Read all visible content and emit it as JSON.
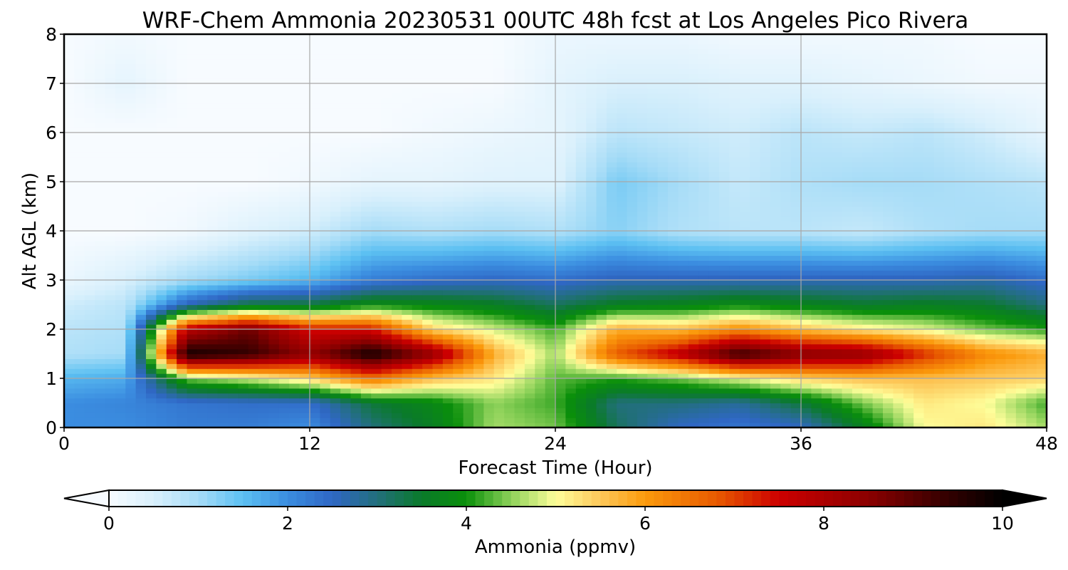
{
  "chart_data": {
    "type": "heatmap",
    "title": "WRF-Chem Ammonia  20230531 00UTC 48h fcst at Los Angeles Pico Rivera",
    "xlabel": "Forecast Time (Hour)",
    "ylabel": "Alt AGL (km)",
    "xlim": [
      0,
      48
    ],
    "ylim": [
      0,
      8
    ],
    "xticks": [
      0,
      12,
      24,
      36,
      48
    ],
    "yticks": [
      0,
      1,
      2,
      3,
      4,
      5,
      6,
      7,
      8
    ],
    "grid": true,
    "x": [
      0,
      3,
      6,
      9,
      12,
      15,
      18,
      21,
      24,
      27,
      30,
      33,
      36,
      39,
      42,
      45,
      48
    ],
    "y": [
      0,
      0.5,
      1,
      1.5,
      2,
      2.5,
      3,
      4,
      5,
      6,
      7,
      8
    ],
    "z": [
      [
        2.0,
        2.0,
        2.2,
        2.2,
        2.0,
        3.0,
        3.6,
        4.6,
        4.4,
        3.2,
        2.5,
        2.3,
        2.5,
        3.6,
        5.0,
        5.2,
        4.6
      ],
      [
        2.0,
        2.1,
        2.3,
        2.4,
        2.4,
        3.4,
        3.8,
        4.5,
        4.2,
        3.0,
        3.0,
        2.8,
        3.4,
        4.4,
        5.2,
        5.0,
        4.2
      ],
      [
        1.6,
        1.7,
        4.4,
        4.8,
        5.4,
        6.5,
        5.6,
        5.2,
        4.3,
        4.1,
        4.4,
        4.9,
        5.4,
        5.6,
        5.6,
        5.5,
        5.4
      ],
      [
        0.9,
        1.0,
        9.8,
        9.4,
        8.4,
        9.8,
        8.4,
        5.8,
        4.6,
        6.8,
        7.8,
        9.4,
        8.6,
        8.4,
        7.2,
        6.2,
        5.8
      ],
      [
        0.8,
        0.9,
        7.8,
        8.8,
        7.4,
        7.4,
        5.4,
        4.8,
        4.2,
        5.8,
        5.6,
        6.2,
        5.6,
        5.2,
        4.9,
        4.4,
        4.1
      ],
      [
        0.6,
        0.8,
        2.6,
        3.4,
        3.4,
        3.9,
        3.8,
        3.6,
        3.2,
        3.6,
        3.7,
        3.9,
        3.7,
        3.5,
        3.6,
        3.5,
        3.0
      ],
      [
        0.2,
        0.5,
        1.0,
        1.3,
        1.6,
        2.2,
        2.4,
        2.5,
        2.4,
        2.6,
        2.6,
        2.6,
        2.6,
        2.6,
        2.6,
        2.7,
        2.4
      ],
      [
        0.0,
        0.0,
        0.1,
        0.4,
        0.6,
        1.0,
        0.9,
        1.0,
        0.9,
        1.2,
        0.9,
        0.8,
        0.8,
        0.7,
        0.9,
        1.0,
        1.0
      ],
      [
        0.0,
        0.0,
        0.0,
        0.0,
        0.1,
        0.3,
        0.3,
        0.4,
        0.4,
        1.3,
        1.0,
        0.7,
        0.9,
        1.0,
        1.0,
        0.9,
        0.8
      ],
      [
        0.0,
        0.0,
        0.0,
        0.0,
        0.0,
        0.0,
        0.1,
        0.2,
        0.3,
        0.8,
        0.7,
        0.6,
        0.8,
        0.7,
        0.8,
        0.6,
        0.3
      ],
      [
        0.0,
        0.3,
        0.0,
        0.0,
        0.0,
        0.0,
        0.0,
        0.0,
        0.3,
        0.5,
        0.5,
        0.4,
        0.4,
        0.3,
        0.2,
        0.1,
        0.1
      ],
      [
        0.0,
        0.1,
        0.0,
        0.0,
        0.0,
        0.0,
        0.0,
        0.0,
        0.2,
        0.2,
        0.2,
        0.1,
        0.1,
        0.1,
        0.1,
        0.0,
        0.0
      ]
    ],
    "colorbar": {
      "label": "Ammonia  (ppmv)",
      "min": 0,
      "max": 10,
      "ticks": [
        0,
        2,
        4,
        6,
        8,
        10
      ],
      "extend": "both",
      "orientation": "horizontal"
    },
    "colormap": [
      [
        0.0,
        "#f7fbff"
      ],
      [
        0.5,
        "#d9f0fc"
      ],
      [
        1.0,
        "#a6dcf7"
      ],
      [
        1.5,
        "#5cc0f2"
      ],
      [
        2.0,
        "#3b8de0"
      ],
      [
        2.5,
        "#2f67c4"
      ],
      [
        3.0,
        "#226f7c"
      ],
      [
        3.5,
        "#0a7a2a"
      ],
      [
        4.0,
        "#0a8f0a"
      ],
      [
        4.5,
        "#8ed25a"
      ],
      [
        5.0,
        "#fefe9a"
      ],
      [
        5.5,
        "#fdc85a"
      ],
      [
        6.0,
        "#fb9a0c"
      ],
      [
        6.8,
        "#e85a00"
      ],
      [
        7.5,
        "#cc0000"
      ],
      [
        8.5,
        "#8b0000"
      ],
      [
        9.3,
        "#3a0000"
      ],
      [
        10.0,
        "#000000"
      ]
    ]
  }
}
